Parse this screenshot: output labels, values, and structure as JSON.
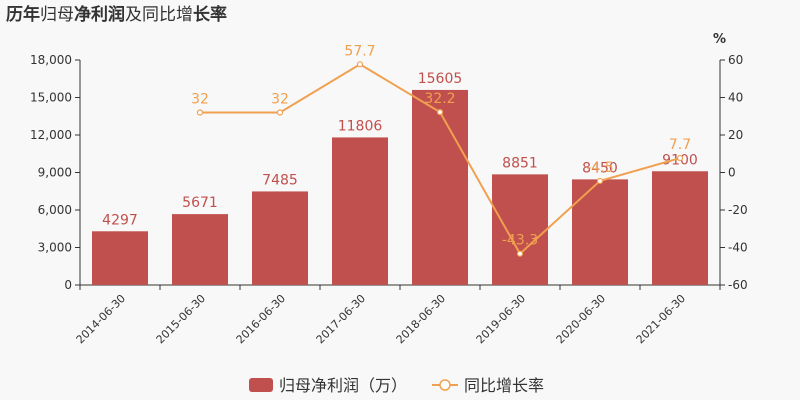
{
  "chart_data": {
    "type": "bar",
    "title": {
      "parts": [
        {
          "text": "历年",
          "bold": true
        },
        {
          "text": "归母",
          "bold": false
        },
        {
          "text": "净利润",
          "bold": true
        },
        {
          "text": "及同比增",
          "bold": false
        },
        {
          "text": "长率",
          "bold": true
        }
      ]
    },
    "categories": [
      "2014-06-30",
      "2015-06-30",
      "2016-06-30",
      "2017-06-30",
      "2018-06-30",
      "2019-06-30",
      "2020-06-30",
      "2021-06-30"
    ],
    "series": [
      {
        "name": "归母净利润（万）",
        "type": "bar",
        "axis": "left",
        "color": "#c0504d",
        "values": [
          4297,
          5671,
          7485,
          11806,
          15605,
          8851,
          8450,
          9100
        ],
        "labels": [
          "4297",
          "5671",
          "7485",
          "11806",
          "15605",
          "8851",
          "8450",
          "9100"
        ]
      },
      {
        "name": "同比增长率",
        "type": "line",
        "axis": "right",
        "color": "#f0a050",
        "values": [
          null,
          32,
          32,
          57.7,
          32.2,
          -43.3,
          -4.5,
          7.7
        ],
        "labels": [
          "",
          "32",
          "32",
          "57.7",
          "32.2",
          "-43.3",
          "-4.5",
          "7.7"
        ]
      }
    ],
    "y_left": {
      "range": [
        0,
        18000
      ],
      "ticks": [
        0,
        3000,
        6000,
        9000,
        12000,
        15000,
        18000
      ],
      "tick_labels": [
        "0",
        "3,000",
        "6,000",
        "9,000",
        "12,000",
        "15,000",
        "18,000"
      ]
    },
    "y_right": {
      "label": "%",
      "range": [
        -60,
        60
      ],
      "ticks": [
        -60,
        -40,
        -20,
        0,
        20,
        40,
        60
      ],
      "tick_labels": [
        "-60",
        "-40",
        "-20",
        "0",
        "20",
        "40",
        "60"
      ]
    },
    "grid": false,
    "legend": "bottom-center"
  }
}
